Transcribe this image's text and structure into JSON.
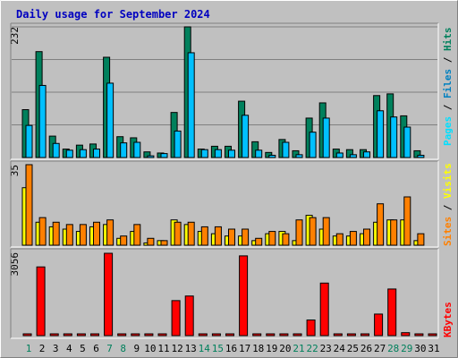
{
  "title": "Daily usage for September 2024",
  "colors": {
    "background": "#c0c0c0",
    "hits": "#00805c",
    "files": "#00c0ff",
    "pages": "#00e0ff",
    "visits": "#ffff00",
    "sites": "#ff8000",
    "kbytes": "#ff0000",
    "title": "#0000c0",
    "weekday": "#000000",
    "weekend": "#00805c"
  },
  "right_labels": {
    "top": [
      {
        "text": "Pages",
        "color": "#00e0ff"
      },
      {
        "text": " / ",
        "color": "#000000"
      },
      {
        "text": "Files",
        "color": "#0080c0"
      },
      {
        "text": " / ",
        "color": "#000000"
      },
      {
        "text": "Hits",
        "color": "#00805c"
      }
    ],
    "middle": [
      {
        "text": "Sites",
        "color": "#ff8000"
      },
      {
        "text": " / ",
        "color": "#000000"
      },
      {
        "text": "Visits",
        "color": "#ffff00"
      }
    ],
    "bottom": [
      {
        "text": "KBytes",
        "color": "#ff0000"
      }
    ]
  },
  "chart_data": [
    {
      "type": "bar",
      "panel": "hits-files-pages",
      "ylim": [
        0,
        232
      ],
      "ytick_label": "232",
      "categories": [
        "1",
        "2",
        "3",
        "4",
        "5",
        "6",
        "7",
        "8",
        "9",
        "10",
        "11",
        "12",
        "13",
        "14",
        "15",
        "16",
        "17",
        "18",
        "19",
        "20",
        "21",
        "22",
        "23",
        "24",
        "25",
        "26",
        "27",
        "28",
        "29",
        "30",
        "31"
      ],
      "weekend_days": [
        "1",
        "7",
        "8",
        "14",
        "15",
        "21",
        "22",
        "28",
        "29"
      ],
      "series": [
        {
          "key": "hits",
          "values": [
            85,
            188,
            38,
            15,
            22,
            24,
            178,
            37,
            35,
            10,
            8,
            80,
            232,
            15,
            20,
            20,
            100,
            28,
            9,
            32,
            12,
            70,
            97,
            15,
            14,
            14,
            110,
            113,
            74,
            12,
            0
          ]
        },
        {
          "key": "files",
          "values": [
            57,
            128,
            25,
            13,
            14,
            15,
            132,
            26,
            27,
            3,
            7,
            47,
            186,
            14,
            14,
            13,
            75,
            13,
            4,
            27,
            5,
            45,
            70,
            8,
            5,
            10,
            83,
            72,
            54,
            4,
            0
          ]
        },
        {
          "key": "pages",
          "values": [
            0,
            0,
            0,
            0,
            0,
            0,
            0,
            0,
            0,
            0,
            0,
            0,
            0,
            0,
            0,
            0,
            0,
            0,
            0,
            0,
            0,
            0,
            0,
            0,
            0,
            0,
            0,
            0,
            0,
            0,
            0
          ]
        }
      ]
    },
    {
      "type": "bar",
      "panel": "visits-sites",
      "ylim": [
        0,
        35
      ],
      "ytick_label": "35",
      "categories": [
        "1",
        "2",
        "3",
        "4",
        "5",
        "6",
        "7",
        "8",
        "9",
        "10",
        "11",
        "12",
        "13",
        "14",
        "15",
        "16",
        "17",
        "18",
        "19",
        "20",
        "21",
        "22",
        "23",
        "24",
        "25",
        "26",
        "27",
        "28",
        "29",
        "30",
        "31"
      ],
      "weekend_days": [
        "1",
        "7",
        "8",
        "14",
        "15",
        "21",
        "22",
        "28",
        "29"
      ],
      "series": [
        {
          "key": "visits",
          "values": [
            25,
            10,
            8,
            7,
            6,
            8,
            9,
            3,
            6,
            1,
            2,
            11,
            9,
            6,
            5,
            4,
            4,
            2,
            5,
            6,
            2,
            13,
            7,
            4,
            4,
            5,
            10,
            11,
            11,
            2,
            0
          ]
        },
        {
          "key": "sites",
          "values": [
            35,
            12,
            10,
            9,
            9,
            10,
            11,
            4,
            9,
            3,
            2,
            10,
            10,
            8,
            8,
            7,
            7,
            3,
            6,
            5,
            11,
            12,
            12,
            5,
            6,
            7,
            18,
            11,
            21,
            5,
            0
          ]
        }
      ]
    },
    {
      "type": "bar",
      "panel": "kbytes",
      "ylim": [
        0,
        3056
      ],
      "ytick_label": "3056",
      "categories": [
        "1",
        "2",
        "3",
        "4",
        "5",
        "6",
        "7",
        "8",
        "9",
        "10",
        "11",
        "12",
        "13",
        "14",
        "15",
        "16",
        "17",
        "18",
        "19",
        "20",
        "21",
        "22",
        "23",
        "24",
        "25",
        "26",
        "27",
        "28",
        "29",
        "30",
        "31"
      ],
      "weekend_days": [
        "1",
        "7",
        "8",
        "14",
        "15",
        "21",
        "22",
        "28",
        "29"
      ],
      "series": [
        {
          "key": "kbytes",
          "values": [
            0,
            2550,
            0,
            0,
            0,
            0,
            3056,
            0,
            0,
            0,
            0,
            1300,
            1470,
            0,
            0,
            0,
            2960,
            0,
            0,
            0,
            0,
            580,
            1950,
            0,
            0,
            0,
            800,
            1730,
            110,
            0,
            0
          ]
        }
      ]
    }
  ]
}
